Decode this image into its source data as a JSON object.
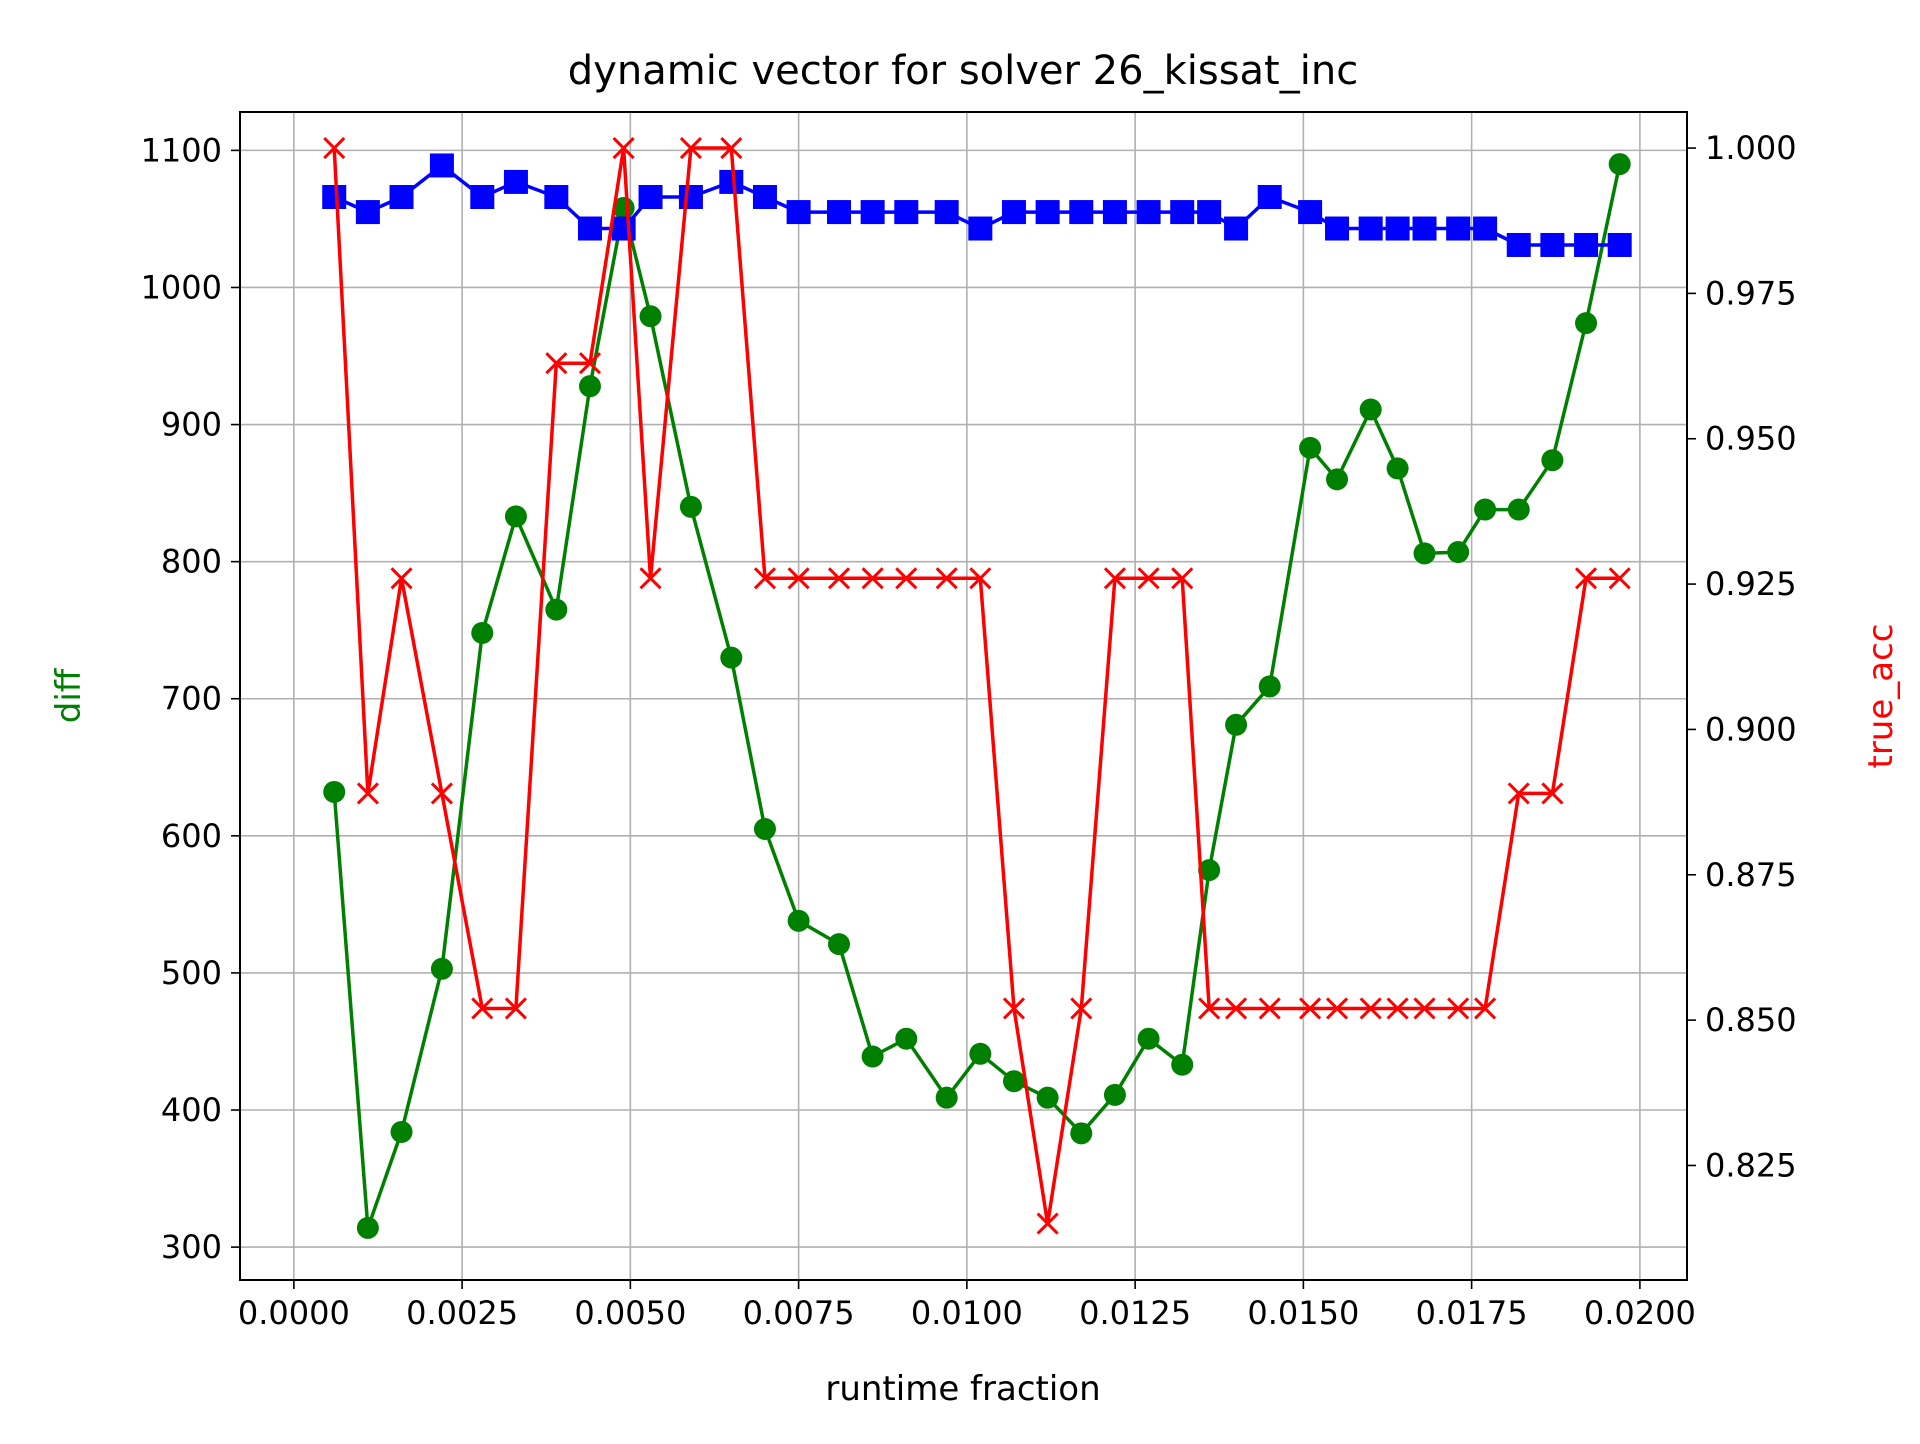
{
  "chart_data": {
    "type": "line",
    "title": "dynamic vector for solver 26_kissat_inc",
    "xlabel": "runtime fraction",
    "ylabel": "diff",
    "y2label": "true_acc",
    "xlim": [
      -0.0008,
      0.0207
    ],
    "ylim": [
      276,
      1128
    ],
    "y2lim": [
      0.8053,
      1.0062
    ],
    "grid": true,
    "x_ticks": [
      "0.0000",
      "0.0025",
      "0.0050",
      "0.0075",
      "0.0100",
      "0.0125",
      "0.0150",
      "0.0175",
      "0.0200"
    ],
    "x_tick_values": [
      0,
      0.0025,
      0.005,
      0.0075,
      0.01,
      0.0125,
      0.015,
      0.0175,
      0.02
    ],
    "y_ticks": [
      "300",
      "400",
      "500",
      "600",
      "700",
      "800",
      "900",
      "1000",
      "1100"
    ],
    "y_tick_values": [
      300,
      400,
      500,
      600,
      700,
      800,
      900,
      1000,
      1100
    ],
    "y2_ticks": [
      "0.825",
      "0.850",
      "0.875",
      "0.900",
      "0.925",
      "0.950",
      "0.975",
      "1.000"
    ],
    "y2_tick_values": [
      0.825,
      0.85,
      0.875,
      0.9,
      0.925,
      0.95,
      0.975,
      1.0
    ],
    "x": [
      0.0006,
      0.0011,
      0.0016,
      0.0022,
      0.0028,
      0.0033,
      0.0039,
      0.0044,
      0.0049,
      0.0053,
      0.0059,
      0.0065,
      0.007,
      0.0075,
      0.0081,
      0.0086,
      0.0091,
      0.0097,
      0.0102,
      0.0107,
      0.0112,
      0.0117,
      0.0122,
      0.0127,
      0.0132,
      0.0136,
      0.014,
      0.0145,
      0.0151,
      0.0155,
      0.016,
      0.0164,
      0.0168,
      0.0173,
      0.0177,
      0.0182,
      0.0187,
      0.0192,
      0.0197
    ],
    "series": [
      {
        "axis": "left",
        "color": "#008000",
        "marker": "circle",
        "values": [
          632,
          314,
          384,
          503,
          748,
          833,
          765,
          928,
          1058,
          979,
          840,
          730,
          605,
          538,
          521,
          439,
          452,
          409,
          441,
          421,
          409,
          383,
          411,
          452,
          433,
          575,
          681,
          709,
          883,
          860,
          911,
          868,
          806,
          807,
          838,
          838,
          874,
          974,
          1090
        ]
      },
      {
        "axis": "left",
        "color": "#0000ff",
        "marker": "square",
        "values": [
          1066,
          1055,
          1066,
          1089,
          1066,
          1077,
          1066,
          1043,
          1043,
          1066,
          1066,
          1077,
          1066,
          1055,
          1055,
          1055,
          1055,
          1055,
          1043,
          1055,
          1055,
          1055,
          1055,
          1055,
          1055,
          1055,
          1043,
          1066,
          1055,
          1043,
          1043,
          1043,
          1043,
          1043,
          1043,
          1031,
          1031,
          1031,
          1031
        ]
      },
      {
        "axis": "right",
        "color": "#ff0000",
        "marker": "x",
        "values": [
          1.0,
          0.889,
          0.926,
          0.889,
          0.852,
          0.852,
          0.963,
          0.963,
          1.0,
          0.926,
          1.0,
          1.0,
          0.926,
          0.926,
          0.926,
          0.926,
          0.926,
          0.926,
          0.926,
          0.852,
          0.815,
          0.852,
          0.926,
          0.926,
          0.926,
          0.852,
          0.852,
          0.852,
          0.852,
          0.852,
          0.852,
          0.852,
          0.852,
          0.852,
          0.852,
          0.889,
          0.889,
          0.926,
          0.926
        ]
      }
    ]
  }
}
